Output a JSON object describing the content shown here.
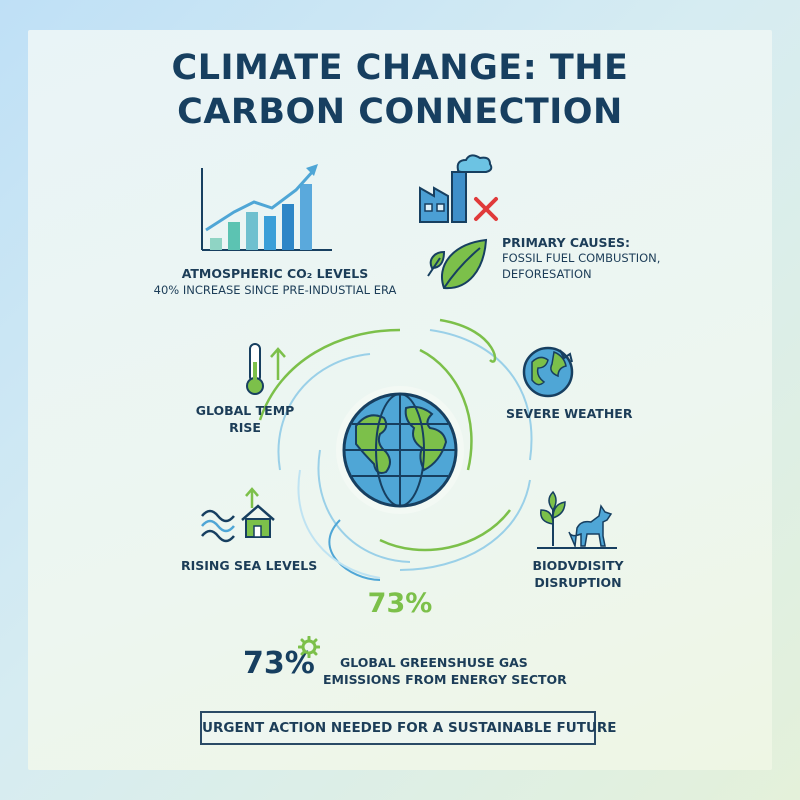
{
  "title": {
    "line1": "CLIMATE CHANGE: THE",
    "line2": "CARBON CONNECTION"
  },
  "co2": {
    "label": "ATMOSPHERIC CO₂ LEVELS",
    "detail": "40% INCREASE SINCE PRE-INDUSTIAL ERA",
    "icon": "bar-chart-rising-icon"
  },
  "causes": {
    "line1": "PRIMARY CAUSES:",
    "line2": "FOSSIL FUEL COMBUSTION,",
    "line3": "DEFORESATION",
    "icons": [
      "factory-icon",
      "cross-icon",
      "leaf-icon"
    ]
  },
  "impacts": {
    "temp": {
      "line1": "GLOBAL TEMP",
      "line2": "RISE",
      "icon": "thermometer-icon"
    },
    "weather": {
      "label": "SEVERE WEATHER",
      "icon": "cracked-globe-icon"
    },
    "sea": {
      "label": "RISING SEA LEVELS",
      "icon": "flood-house-icon"
    },
    "bio": {
      "line1": "BIODVDISITY",
      "line2": "DISRUPTION",
      "icon": "wolf-plant-icon"
    }
  },
  "center_globe": {
    "icon": "globe-icon"
  },
  "stat_green": "73%",
  "stat": {
    "value": "73%",
    "line1": "GLOBAL GREENSHUSE GAS",
    "line2": "EMISSIONS FROM ENERGY SECTOR",
    "icon": "gear-icon"
  },
  "cta": "URGENT ACTION NEEDED FOR A SUSTAINABLE FUTURE",
  "colors": {
    "navy": "#173f60",
    "green": "#7cc04a",
    "blue": "#4fa6d6",
    "teal": "#4cc6b5",
    "red": "#e03a3a"
  }
}
